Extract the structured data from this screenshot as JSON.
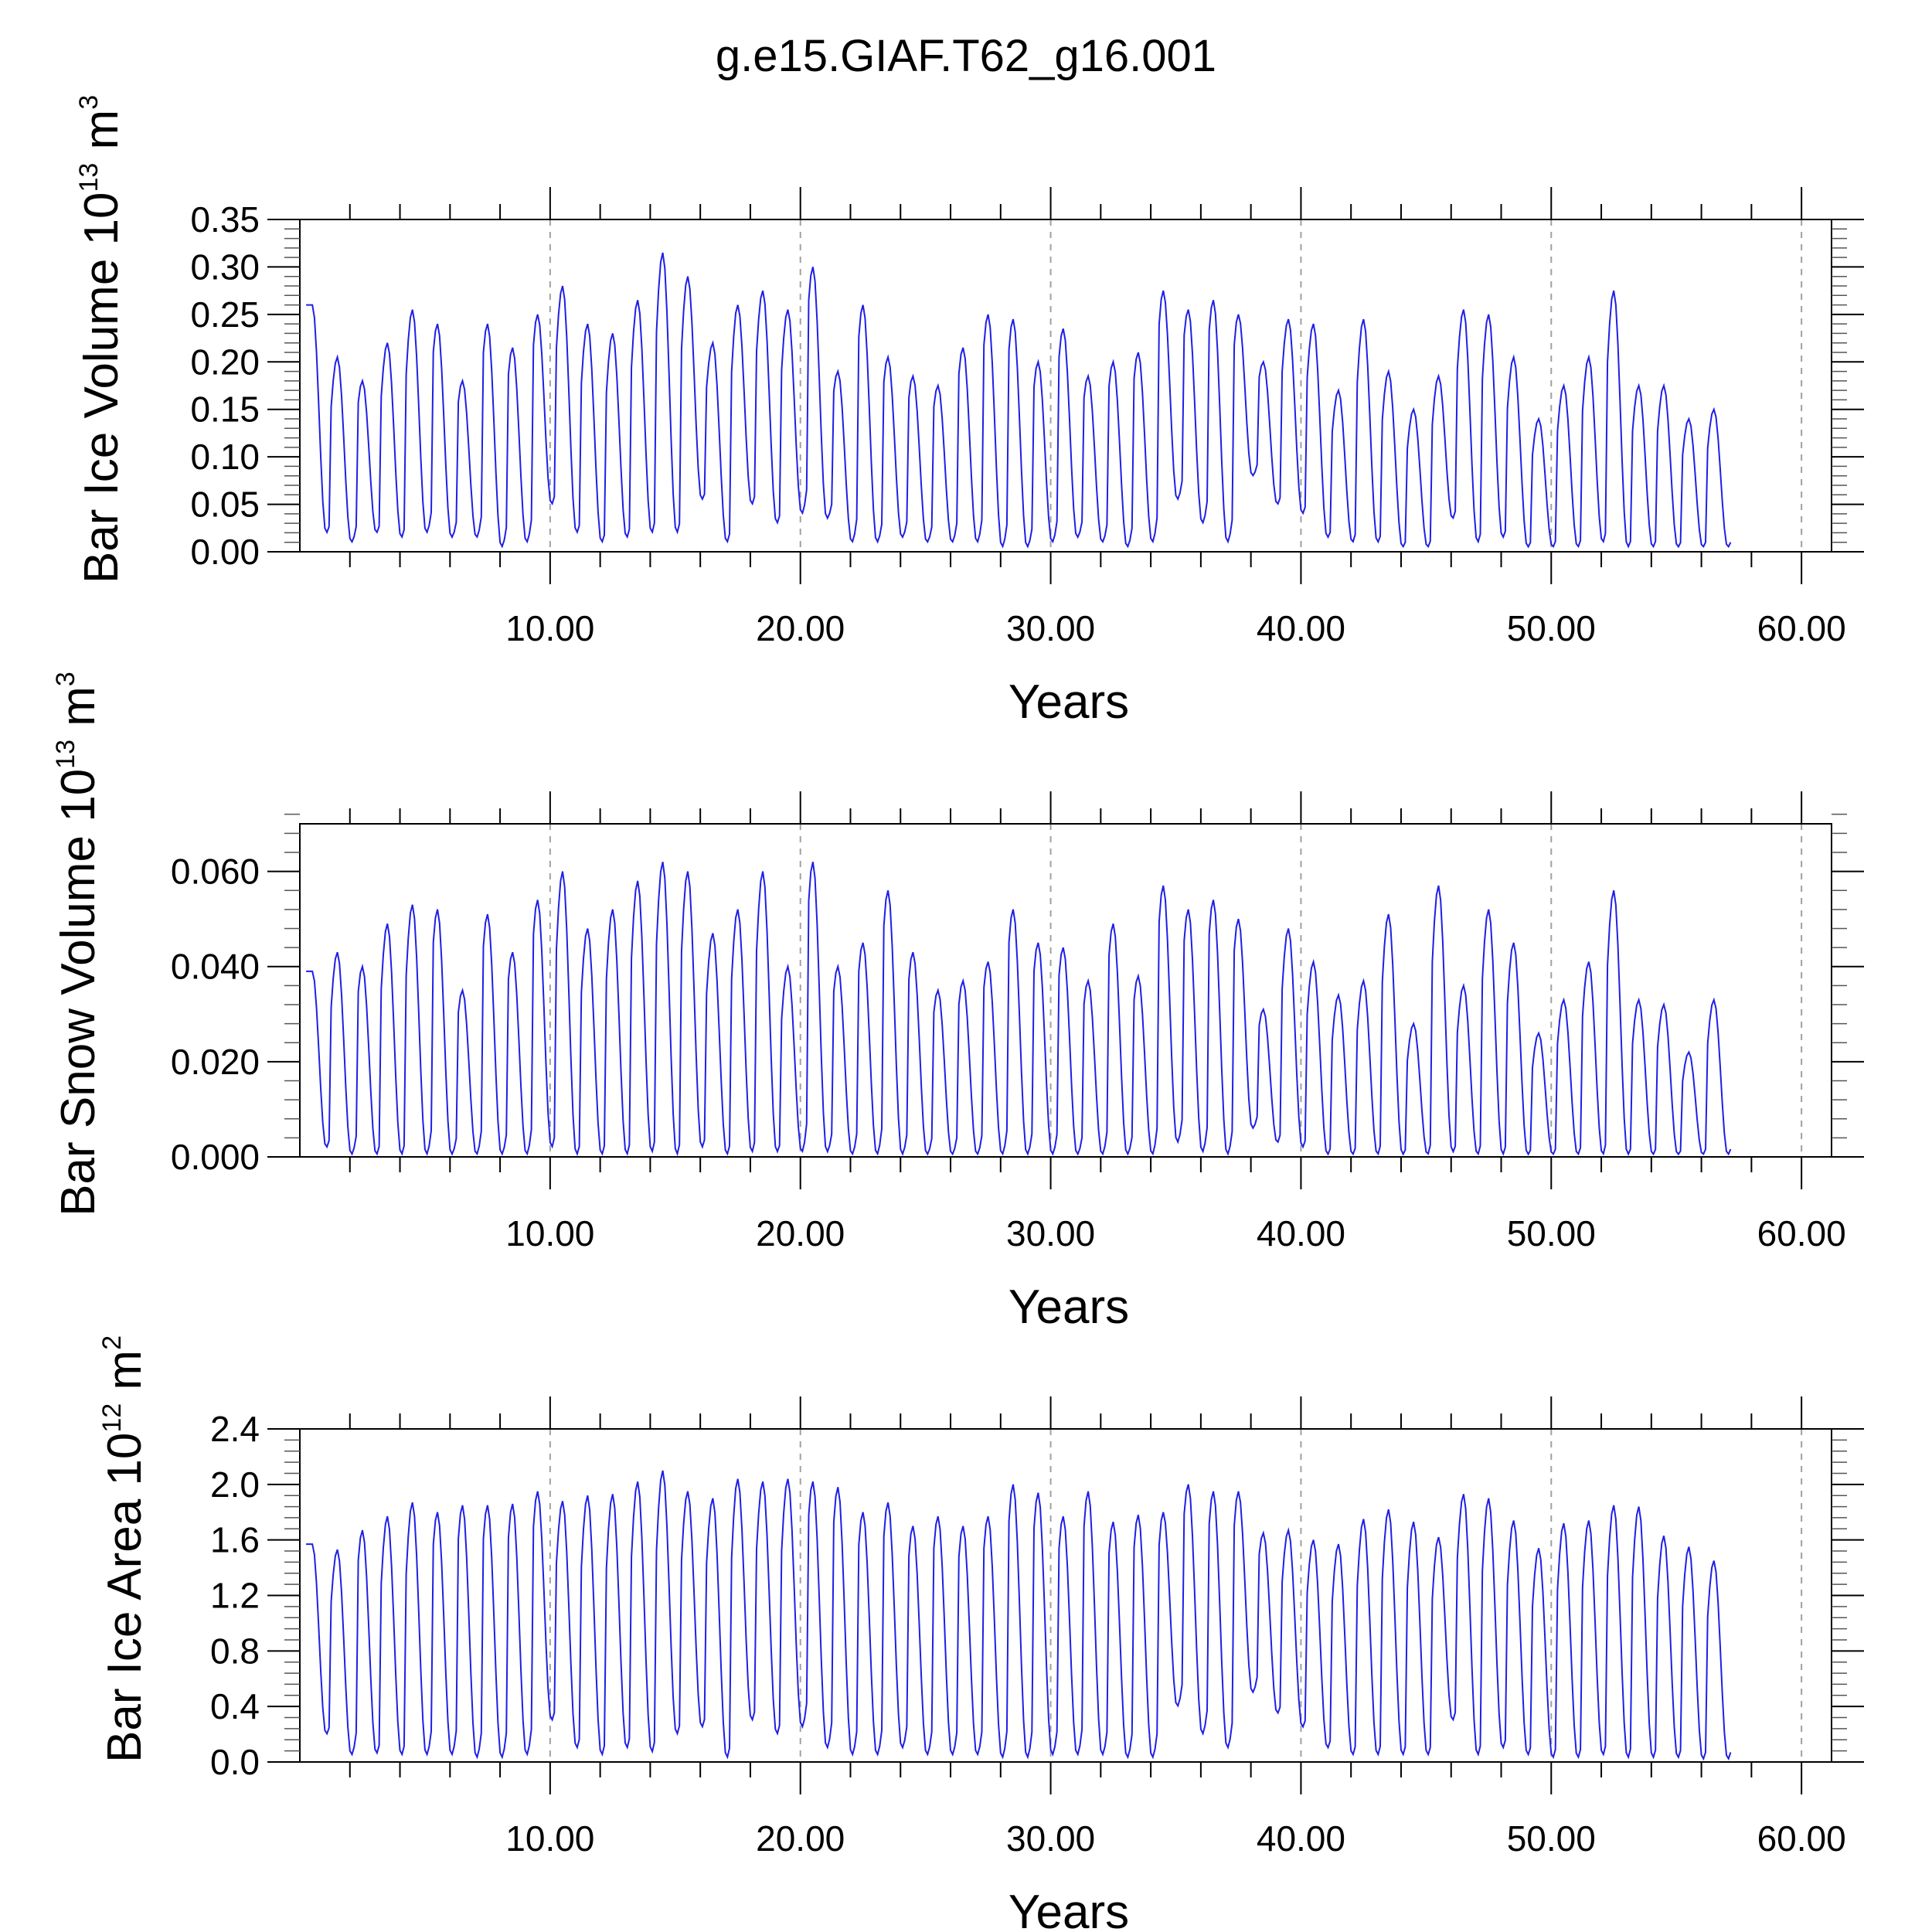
{
  "figure": {
    "title": "g.e15.GIAF.T62_g16.001",
    "line_color": "#1f1fe6"
  },
  "chart_data": [
    {
      "type": "line",
      "name": "ice-volume",
      "ylabel_parts": [
        "Bar Ice Volume 10",
        "13",
        " m",
        "3"
      ],
      "xlabel": "Years",
      "xlim": [
        0,
        61.2
      ],
      "ylim": [
        0,
        0.35
      ],
      "xticks": [
        10,
        20,
        30,
        40,
        50,
        60
      ],
      "xtick_labels": [
        "10.00",
        "20.00",
        "30.00",
        "40.00",
        "50.00",
        "60.00"
      ],
      "yticks": [
        0,
        0.05,
        0.1,
        0.15,
        0.2,
        0.25,
        0.3,
        0.35
      ],
      "ytick_labels": [
        "0.00",
        "0.05",
        "0.10",
        "0.15",
        "0.20",
        "0.25",
        "0.30",
        "0.35"
      ],
      "minor_y_step": 0.01,
      "minor_x_step": 2,
      "grid": "vertical dashed at major x ticks",
      "annual_max": [
        0.26,
        0.205,
        0.18,
        0.22,
        0.255,
        0.24,
        0.18,
        0.24,
        0.215,
        0.25,
        0.28,
        0.24,
        0.23,
        0.265,
        0.315,
        0.29,
        0.22,
        0.26,
        0.275,
        0.255,
        0.3,
        0.19,
        0.26,
        0.205,
        0.185,
        0.175,
        0.215,
        0.25,
        0.245,
        0.2,
        0.235,
        0.185,
        0.2,
        0.21,
        0.275,
        0.255,
        0.265,
        0.25,
        0.2,
        0.245,
        0.24,
        0.17,
        0.245,
        0.19,
        0.15,
        0.185,
        0.255,
        0.25,
        0.205,
        0.14,
        0.175,
        0.205,
        0.275,
        0.175,
        0.175,
        0.14,
        0.15
      ],
      "annual_min": [
        0.02,
        0.01,
        0.02,
        0.015,
        0.02,
        0.015,
        0.015,
        0.005,
        0.01,
        0.05,
        0.02,
        0.01,
        0.015,
        0.02,
        0.02,
        0.055,
        0.01,
        0.05,
        0.03,
        0.04,
        0.035,
        0.01,
        0.01,
        0.015,
        0.01,
        0.01,
        0.01,
        0.005,
        0.005,
        0.01,
        0.015,
        0.01,
        0.005,
        0.01,
        0.055,
        0.03,
        0.01,
        0.08,
        0.05,
        0.04,
        0.015,
        0.01,
        0.01,
        0.005,
        0.005,
        0.035,
        0.01,
        0.015,
        0.005,
        0.005,
        0.005,
        0.01,
        0.005,
        0.005,
        0.005,
        0.005,
        0.005
      ]
    },
    {
      "type": "line",
      "name": "snow-volume",
      "ylabel_parts": [
        "Bar Snow Volume 10",
        "13",
        " m",
        "3"
      ],
      "xlabel": "Years",
      "xlim": [
        0,
        61.2
      ],
      "ylim": [
        0,
        0.07
      ],
      "xticks": [
        10,
        20,
        30,
        40,
        50,
        60
      ],
      "xtick_labels": [
        "10.00",
        "20.00",
        "30.00",
        "40.00",
        "50.00",
        "60.00"
      ],
      "yticks": [
        0,
        0.02,
        0.04,
        0.06
      ],
      "ytick_labels": [
        "0.000",
        "0.020",
        "0.040",
        "0.060"
      ],
      "minor_y_step": 0.004,
      "minor_x_step": 2,
      "grid": "vertical dashed at major x ticks",
      "annual_max": [
        0.039,
        0.043,
        0.04,
        0.049,
        0.053,
        0.052,
        0.035,
        0.051,
        0.043,
        0.054,
        0.06,
        0.048,
        0.052,
        0.058,
        0.062,
        0.06,
        0.047,
        0.052,
        0.06,
        0.04,
        0.062,
        0.04,
        0.045,
        0.056,
        0.043,
        0.035,
        0.037,
        0.041,
        0.052,
        0.045,
        0.044,
        0.037,
        0.049,
        0.038,
        0.057,
        0.052,
        0.054,
        0.05,
        0.031,
        0.048,
        0.041,
        0.034,
        0.037,
        0.051,
        0.028,
        0.057,
        0.036,
        0.052,
        0.045,
        0.026,
        0.033,
        0.041,
        0.056,
        0.033,
        0.032,
        0.022,
        0.033
      ],
      "annual_min": [
        0.002,
        0.0005,
        0.0005,
        0.0005,
        0.0005,
        0.0005,
        0.0005,
        0.0005,
        0.0005,
        0.002,
        0.0005,
        0.0005,
        0.0005,
        0.001,
        0.0005,
        0.002,
        0.0005,
        0.001,
        0.001,
        0.001,
        0.001,
        0.0005,
        0.0005,
        0.0005,
        0.0005,
        0.0005,
        0.0005,
        0.0005,
        0.0005,
        0.0005,
        0.0005,
        0.0005,
        0.0005,
        0.0005,
        0.003,
        0.001,
        0.0005,
        0.006,
        0.003,
        0.002,
        0.0005,
        0.0005,
        0.0005,
        0.0005,
        0.0005,
        0.001,
        0.0005,
        0.0005,
        0.0005,
        0.0005,
        0.0005,
        0.0005,
        0.0005,
        0.0005,
        0.0005,
        0.0005,
        0.0005
      ]
    },
    {
      "type": "line",
      "name": "ice-area",
      "ylabel_parts": [
        "Bar Ice Area 10",
        "12",
        " m",
        "2"
      ],
      "xlabel": "Years",
      "xlim": [
        0,
        61.2
      ],
      "ylim": [
        0,
        2.4
      ],
      "xticks": [
        10,
        20,
        30,
        40,
        50,
        60
      ],
      "xtick_labels": [
        "10.00",
        "20.00",
        "30.00",
        "40.00",
        "50.00",
        "60.00"
      ],
      "yticks": [
        0,
        0.4,
        0.8,
        1.2,
        1.6,
        2.0,
        2.4
      ],
      "ytick_labels": [
        "0.0",
        "0.4",
        "0.8",
        "1.2",
        "1.6",
        "2.0",
        "2.4"
      ],
      "minor_y_step": 0.08,
      "minor_x_step": 2,
      "grid": "vertical dashed at major x ticks",
      "annual_max": [
        1.57,
        1.53,
        1.67,
        1.77,
        1.87,
        1.8,
        1.85,
        1.85,
        1.86,
        1.95,
        1.88,
        1.92,
        1.93,
        2.02,
        2.1,
        1.95,
        1.9,
        2.04,
        2.02,
        2.04,
        2.02,
        1.98,
        1.8,
        1.87,
        1.7,
        1.77,
        1.7,
        1.77,
        2.0,
        1.94,
        1.77,
        1.95,
        1.73,
        1.78,
        1.8,
        2.0,
        1.95,
        1.95,
        1.65,
        1.67,
        1.6,
        1.57,
        1.75,
        1.82,
        1.73,
        1.62,
        1.93,
        1.9,
        1.74,
        1.54,
        1.72,
        1.74,
        1.85,
        1.84,
        1.63,
        1.55,
        1.45
      ],
      "annual_min": [
        0.2,
        0.05,
        0.06,
        0.05,
        0.05,
        0.05,
        0.03,
        0.03,
        0.05,
        0.3,
        0.1,
        0.05,
        0.1,
        0.07,
        0.2,
        0.25,
        0.03,
        0.3,
        0.2,
        0.25,
        0.1,
        0.05,
        0.05,
        0.1,
        0.05,
        0.05,
        0.05,
        0.03,
        0.03,
        0.05,
        0.05,
        0.05,
        0.03,
        0.03,
        0.4,
        0.2,
        0.1,
        0.5,
        0.35,
        0.25,
        0.1,
        0.05,
        0.05,
        0.05,
        0.05,
        0.3,
        0.05,
        0.1,
        0.05,
        0.03,
        0.03,
        0.05,
        0.03,
        0.03,
        0.03,
        0.02,
        0.02
      ]
    }
  ]
}
